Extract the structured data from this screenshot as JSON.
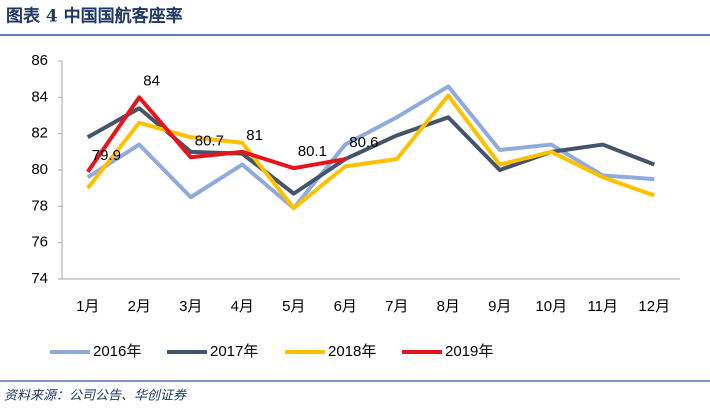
{
  "chart_data": {
    "type": "line",
    "title": "图表 4  中国国航客座率",
    "source": "资料来源：公司公告、华创证券",
    "categories": [
      "1月",
      "2月",
      "3月",
      "4月",
      "5月",
      "6月",
      "7月",
      "8月",
      "9月",
      "10月",
      "11月",
      "12月"
    ],
    "series": [
      {
        "name": "2016年",
        "color": "#8faadc",
        "values": [
          79.6,
          81.4,
          78.5,
          80.3,
          77.9,
          81.4,
          82.9,
          84.6,
          81.1,
          81.4,
          79.7,
          79.5
        ]
      },
      {
        "name": "2017年",
        "color": "#44546a",
        "values": [
          81.8,
          83.4,
          81.0,
          80.9,
          78.7,
          80.6,
          81.9,
          82.9,
          80.0,
          81.0,
          81.4,
          80.3
        ]
      },
      {
        "name": "2018年",
        "color": "#ffc000",
        "values": [
          79.0,
          82.6,
          81.8,
          81.5,
          77.9,
          80.2,
          80.6,
          84.1,
          80.3,
          81.0,
          79.6,
          78.6
        ]
      },
      {
        "name": "2019年",
        "color": "#e8141c",
        "data_labels": true,
        "values": [
          79.9,
          84,
          80.7,
          81,
          80.1,
          80.6,
          null,
          null,
          null,
          null,
          null,
          null
        ]
      }
    ],
    "ylim": [
      74,
      86
    ],
    "yticks": [
      74,
      76,
      78,
      80,
      82,
      84,
      86
    ],
    "legend": "bottom"
  }
}
